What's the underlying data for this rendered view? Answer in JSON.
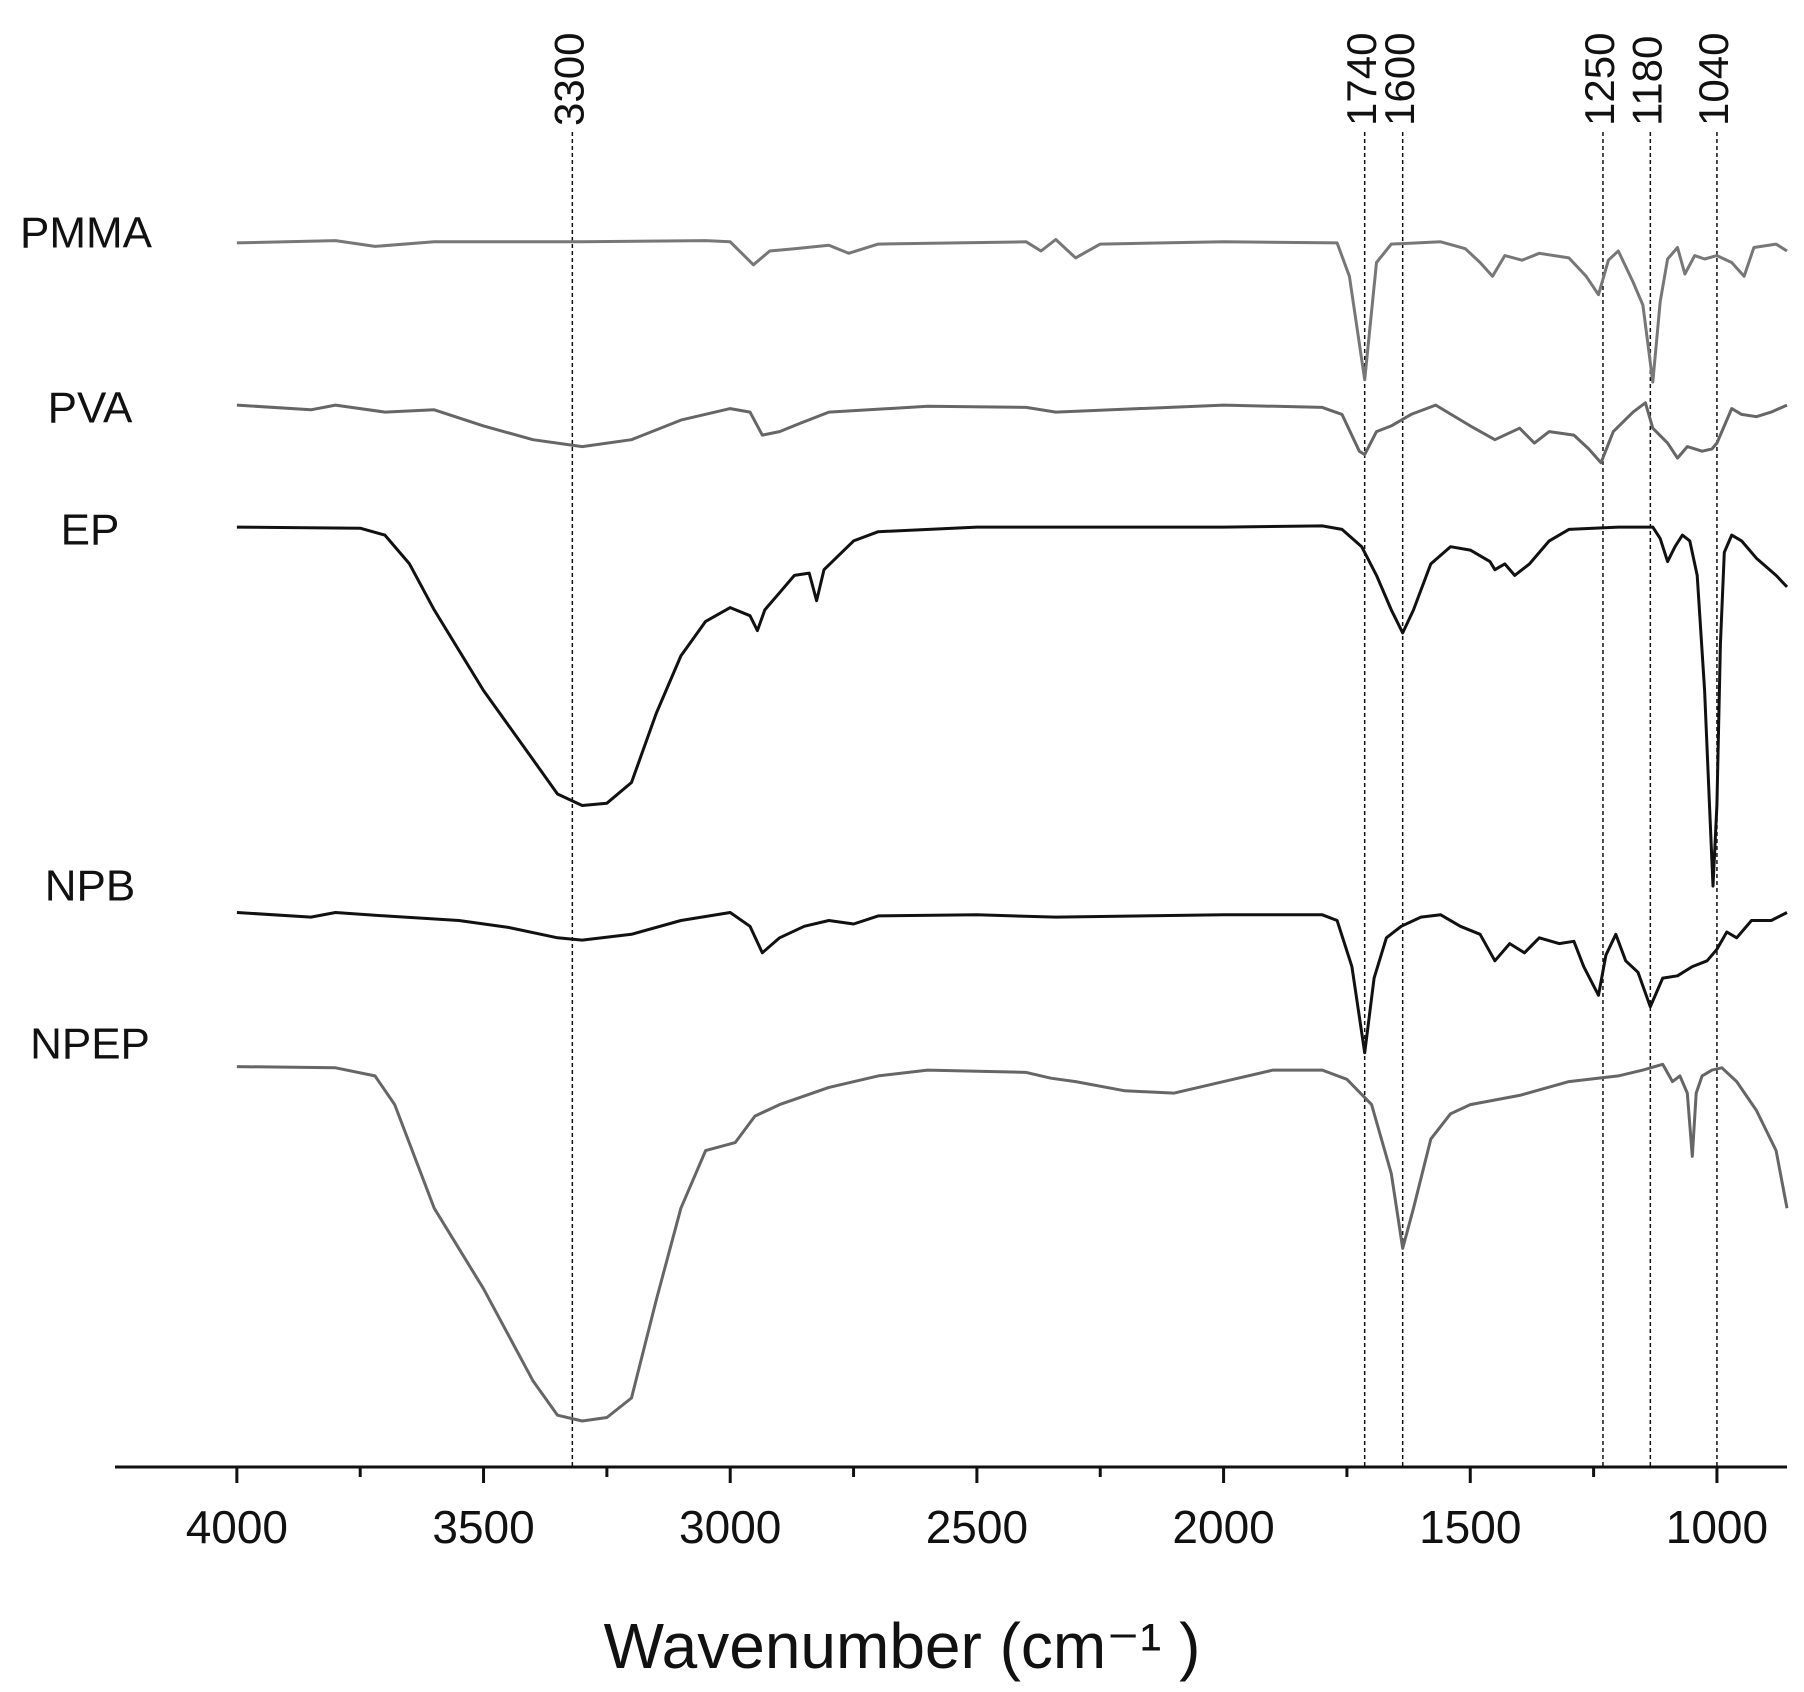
{
  "chart_data": {
    "type": "line",
    "xlabel": "Wavenumber (cm⁻¹ )",
    "xlim": [
      4247,
      858
    ],
    "xticks": [
      4000,
      3500,
      3000,
      2500,
      2000,
      1500,
      1000
    ],
    "xminorticks": [
      3750,
      3250,
      2750,
      2250,
      1750,
      1250
    ],
    "ylim": [
      0,
      115
    ],
    "annotations": [
      {
        "value": 3320,
        "label": "3300"
      },
      {
        "value": 1714,
        "label": "1740"
      },
      {
        "value": 1637,
        "label": "1600"
      },
      {
        "value": 1231,
        "label": "1250"
      },
      {
        "value": 1135,
        "label": "1180"
      },
      {
        "value": 1000,
        "label": "1040"
      }
    ],
    "series": [
      {
        "name": "PMMA",
        "color": "#777777",
        "x": [
          4000,
          3800,
          3720,
          3600,
          3300,
          3050,
          3000,
          2953,
          2920,
          2870,
          2800,
          2760,
          2700,
          2400,
          2370,
          2340,
          2300,
          2250,
          2000,
          1770,
          1745,
          1714,
          1690,
          1660,
          1560,
          1510,
          1480,
          1455,
          1430,
          1395,
          1360,
          1300,
          1265,
          1240,
          1220,
          1200,
          1170,
          1150,
          1130,
          1115,
          1100,
          1080,
          1065,
          1045,
          1025,
          1000,
          970,
          945,
          925,
          880,
          858
        ],
        "values": [
          106.4,
          106.6,
          106.1,
          106.5,
          106.5,
          106.6,
          106.5,
          104.5,
          105.7,
          105.9,
          106.2,
          105.5,
          106.3,
          106.5,
          105.7,
          106.7,
          105.1,
          106.3,
          106.5,
          106.4,
          103.5,
          94.5,
          104.7,
          106.3,
          106.5,
          105.9,
          104.7,
          103.5,
          105.3,
          104.9,
          105.5,
          105.1,
          103.5,
          101.9,
          104.9,
          105.7,
          103.0,
          101.0,
          94.3,
          101.3,
          105.0,
          106.0,
          103.7,
          105.3,
          105.0,
          105.3,
          104.7,
          103.5,
          106.0,
          106.3,
          105.7
        ]
      },
      {
        "name": "PVA",
        "color": "#666666",
        "x": [
          4000,
          3850,
          3800,
          3700,
          3600,
          3500,
          3400,
          3300,
          3200,
          3100,
          3000,
          2960,
          2935,
          2900,
          2860,
          2800,
          2600,
          2400,
          2340,
          2000,
          1800,
          1760,
          1725,
          1714,
          1690,
          1660,
          1620,
          1570,
          1500,
          1450,
          1400,
          1370,
          1340,
          1290,
          1260,
          1235,
          1210,
          1170,
          1145,
          1130,
          1100,
          1080,
          1060,
          1030,
          1010,
          1000,
          970,
          950,
          920,
          890,
          858
        ],
        "values": [
          92.3,
          91.9,
          92.3,
          91.7,
          91.9,
          90.5,
          89.3,
          88.7,
          89.3,
          91.0,
          92.0,
          91.7,
          89.7,
          90.0,
          90.7,
          91.7,
          92.2,
          92.1,
          91.7,
          92.3,
          92.1,
          91.5,
          88.3,
          88.0,
          90.0,
          90.5,
          91.5,
          92.3,
          90.5,
          89.3,
          90.3,
          89.0,
          90.0,
          89.7,
          88.5,
          87.3,
          90.0,
          91.7,
          92.5,
          90.3,
          89.0,
          87.7,
          88.7,
          88.3,
          88.5,
          89.0,
          92.0,
          91.5,
          91.3,
          91.7,
          92.3
        ]
      },
      {
        "name": "EP",
        "color": "#111111",
        "x": [
          4000,
          3750,
          3700,
          3650,
          3600,
          3500,
          3400,
          3350,
          3300,
          3250,
          3200,
          3150,
          3100,
          3050,
          3000,
          2960,
          2945,
          2930,
          2900,
          2870,
          2840,
          2825,
          2810,
          2750,
          2700,
          2500,
          2000,
          1800,
          1760,
          1720,
          1690,
          1660,
          1637,
          1615,
          1580,
          1540,
          1500,
          1460,
          1450,
          1430,
          1410,
          1380,
          1340,
          1300,
          1200,
          1130,
          1115,
          1100,
          1085,
          1070,
          1055,
          1040,
          1025,
          1015,
          1008,
          1000,
          993,
          985,
          970,
          950,
          920,
          880,
          858
        ],
        "values": [
          81.7,
          81.6,
          81.0,
          78.5,
          74.5,
          67.5,
          61.5,
          58.5,
          57.5,
          57.7,
          59.5,
          65.5,
          70.5,
          73.5,
          74.7,
          74.0,
          72.7,
          74.5,
          76.0,
          77.5,
          77.7,
          75.3,
          78.0,
          80.5,
          81.3,
          81.7,
          81.7,
          81.8,
          81.5,
          80.0,
          77.5,
          74.5,
          72.5,
          74.5,
          78.5,
          80.0,
          79.7,
          78.7,
          78.0,
          78.5,
          77.5,
          78.5,
          80.5,
          81.5,
          81.7,
          81.7,
          80.7,
          78.7,
          80.0,
          81.0,
          80.5,
          77.5,
          67.5,
          57.5,
          50.5,
          57.5,
          71.5,
          79.5,
          81.0,
          80.5,
          79.0,
          77.5,
          76.5
        ]
      },
      {
        "name": "NPB",
        "color": "#111111",
        "x": [
          4000,
          3850,
          3800,
          3700,
          3550,
          3450,
          3350,
          3300,
          3200,
          3100,
          3000,
          2960,
          2935,
          2900,
          2850,
          2800,
          2750,
          2700,
          2500,
          2340,
          2000,
          1800,
          1770,
          1740,
          1714,
          1695,
          1670,
          1640,
          1600,
          1560,
          1520,
          1480,
          1450,
          1420,
          1390,
          1360,
          1320,
          1290,
          1270,
          1240,
          1225,
          1205,
          1185,
          1160,
          1135,
          1110,
          1080,
          1050,
          1020,
          1000,
          980,
          960,
          930,
          890,
          858
        ],
        "values": [
          48.2,
          47.8,
          48.2,
          47.9,
          47.5,
          46.9,
          46.0,
          45.8,
          46.3,
          47.5,
          48.2,
          47.0,
          44.7,
          46.0,
          47.0,
          47.5,
          47.2,
          47.9,
          48.0,
          47.8,
          48.0,
          48.0,
          47.5,
          43.5,
          36.0,
          42.5,
          46.0,
          47.0,
          47.8,
          48.0,
          47.0,
          46.3,
          44.0,
          45.5,
          44.7,
          46.0,
          45.5,
          45.7,
          43.5,
          41.0,
          44.5,
          46.3,
          44.0,
          43.0,
          40.0,
          42.5,
          42.7,
          43.5,
          44.0,
          45.0,
          46.5,
          46.0,
          47.5,
          47.5,
          48.2
        ]
      },
      {
        "name": "NPEP",
        "color": "#666666",
        "x": [
          4000,
          3800,
          3720,
          3680,
          3600,
          3500,
          3400,
          3350,
          3300,
          3250,
          3200,
          3150,
          3100,
          3050,
          2990,
          2950,
          2900,
          2800,
          2700,
          2600,
          2400,
          2350,
          2300,
          2200,
          2100,
          2000,
          1900,
          1800,
          1750,
          1700,
          1660,
          1637,
          1615,
          1580,
          1540,
          1500,
          1400,
          1300,
          1200,
          1150,
          1110,
          1090,
          1075,
          1060,
          1050,
          1042,
          1030,
          1010,
          990,
          960,
          920,
          880,
          858
        ],
        "values": [
          34.8,
          34.7,
          34.0,
          31.5,
          22.5,
          15.5,
          7.5,
          4.5,
          4.0,
          4.3,
          6.0,
          14.5,
          22.5,
          27.5,
          28.2,
          30.5,
          31.5,
          33.0,
          34.0,
          34.5,
          34.3,
          33.8,
          33.5,
          32.7,
          32.5,
          33.5,
          34.5,
          34.5,
          33.7,
          31.5,
          25.5,
          19.0,
          22.5,
          28.5,
          30.7,
          31.5,
          32.3,
          33.5,
          34.0,
          34.5,
          35.0,
          33.5,
          34.0,
          32.5,
          27.0,
          32.5,
          34.0,
          34.5,
          34.7,
          33.5,
          31.0,
          27.5,
          22.5
        ]
      }
    ]
  }
}
